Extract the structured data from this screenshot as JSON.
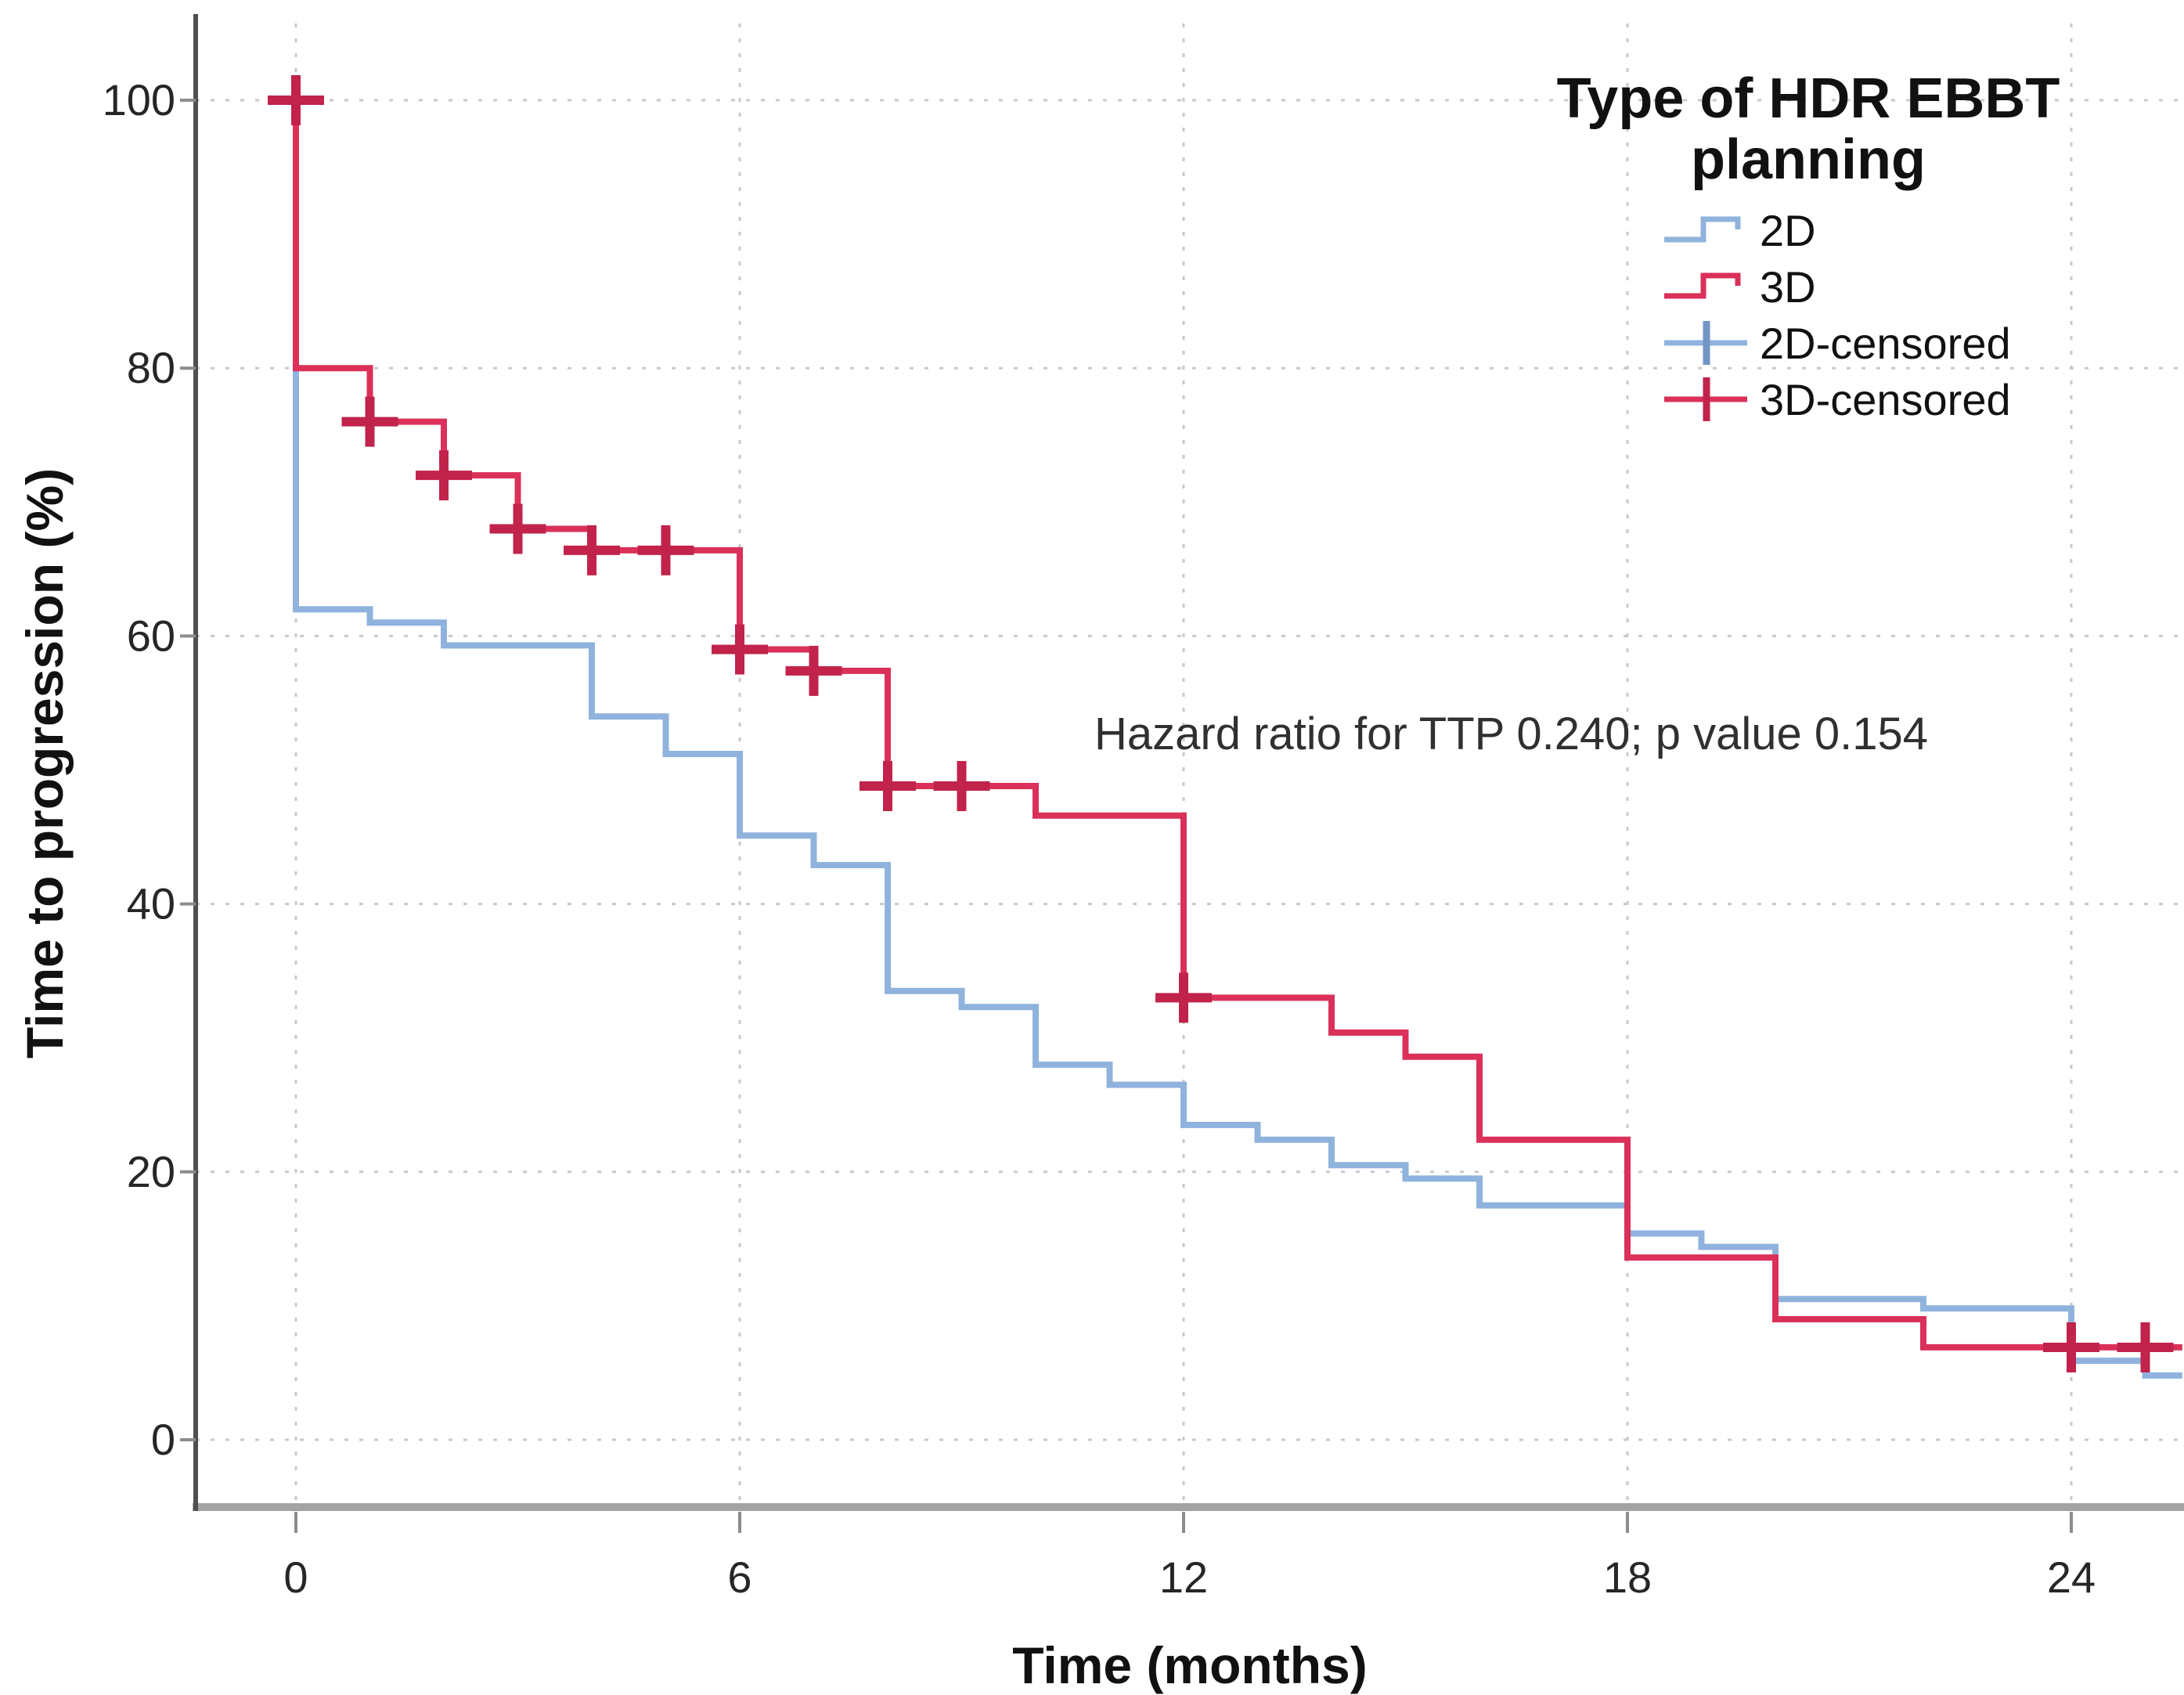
{
  "chart_data": {
    "type": "line",
    "subtype": "kaplan-meier-step",
    "title": "",
    "xlabel": "Time (months)",
    "ylabel": "Time to progression (%)",
    "x_ticks": [
      0,
      6,
      12,
      18,
      24
    ],
    "y_ticks": [
      0,
      20,
      40,
      60,
      80,
      100
    ],
    "xlim": [
      -1.35,
      25.5
    ],
    "ylim": [
      -4.7,
      105.5
    ],
    "grid": "dotted",
    "annotation": "Hazard ratio for TTP 0.240; p value 0.154",
    "legend": {
      "position": "top-right-inside",
      "title_lines": [
        "Type of HDR EBBT",
        "planning"
      ],
      "items": [
        {
          "label": "2D",
          "series": "2D",
          "glyph": "step"
        },
        {
          "label": "3D",
          "series": "3D",
          "glyph": "step"
        },
        {
          "label": "2D-censored",
          "series": "2D",
          "glyph": "censor"
        },
        {
          "label": "3D-censored",
          "series": "3D",
          "glyph": "censor"
        }
      ]
    },
    "series": [
      {
        "name": "2D",
        "color": "#8FB3DD",
        "censor_color": "#7295C5",
        "steps": [
          [
            0,
            100
          ],
          [
            0,
            62
          ],
          [
            1,
            61
          ],
          [
            2,
            59.3
          ],
          [
            4,
            54
          ],
          [
            5,
            51.2
          ],
          [
            6,
            45.1
          ],
          [
            7,
            42.9
          ],
          [
            8,
            33.5
          ],
          [
            9,
            32.3
          ],
          [
            10,
            28
          ],
          [
            11,
            26.5
          ],
          [
            12,
            23.5
          ],
          [
            13,
            22.4
          ],
          [
            14,
            20.5
          ],
          [
            15,
            19.5
          ],
          [
            16,
            17.5
          ],
          [
            18,
            15.4
          ],
          [
            19,
            14.4
          ],
          [
            20,
            10.5
          ],
          [
            22,
            9.8
          ],
          [
            24,
            5.9
          ],
          [
            25,
            4.8
          ]
        ],
        "end_time": 25.5,
        "censors": []
      },
      {
        "name": "3D",
        "color": "#DA3059",
        "censor_color": "#C1234B",
        "steps": [
          [
            0,
            100
          ],
          [
            0,
            80
          ],
          [
            1,
            76
          ],
          [
            2,
            72
          ],
          [
            3,
            68
          ],
          [
            4,
            66.4
          ],
          [
            6,
            59
          ],
          [
            7,
            57.4
          ],
          [
            8,
            48.8
          ],
          [
            10,
            46.6
          ],
          [
            12,
            33
          ],
          [
            14,
            30.4
          ],
          [
            15,
            28.6
          ],
          [
            16,
            22.4
          ],
          [
            18,
            13.6
          ],
          [
            20,
            9
          ],
          [
            22,
            6.9
          ]
        ],
        "end_time": 25.5,
        "censors": [
          [
            0,
            100
          ],
          [
            1,
            76
          ],
          [
            2,
            72
          ],
          [
            3,
            68
          ],
          [
            4,
            66.4
          ],
          [
            5,
            66.4
          ],
          [
            6,
            59
          ],
          [
            7,
            57.4
          ],
          [
            8,
            48.8
          ],
          [
            9,
            48.8
          ],
          [
            12,
            33
          ],
          [
            24,
            6.9
          ],
          [
            25,
            6.9
          ]
        ]
      }
    ]
  },
  "colors": {
    "background": "#ffffff",
    "gridline": "#c9c9c9",
    "y_axis_line": "#4f4f4f",
    "x_axis_line": "#a3a3a3",
    "tick_mark": "#8c8c8c",
    "tick_label": "#262626",
    "axis_title": "#111111",
    "annotation_text": "#303030",
    "legend_text": "#111111"
  }
}
